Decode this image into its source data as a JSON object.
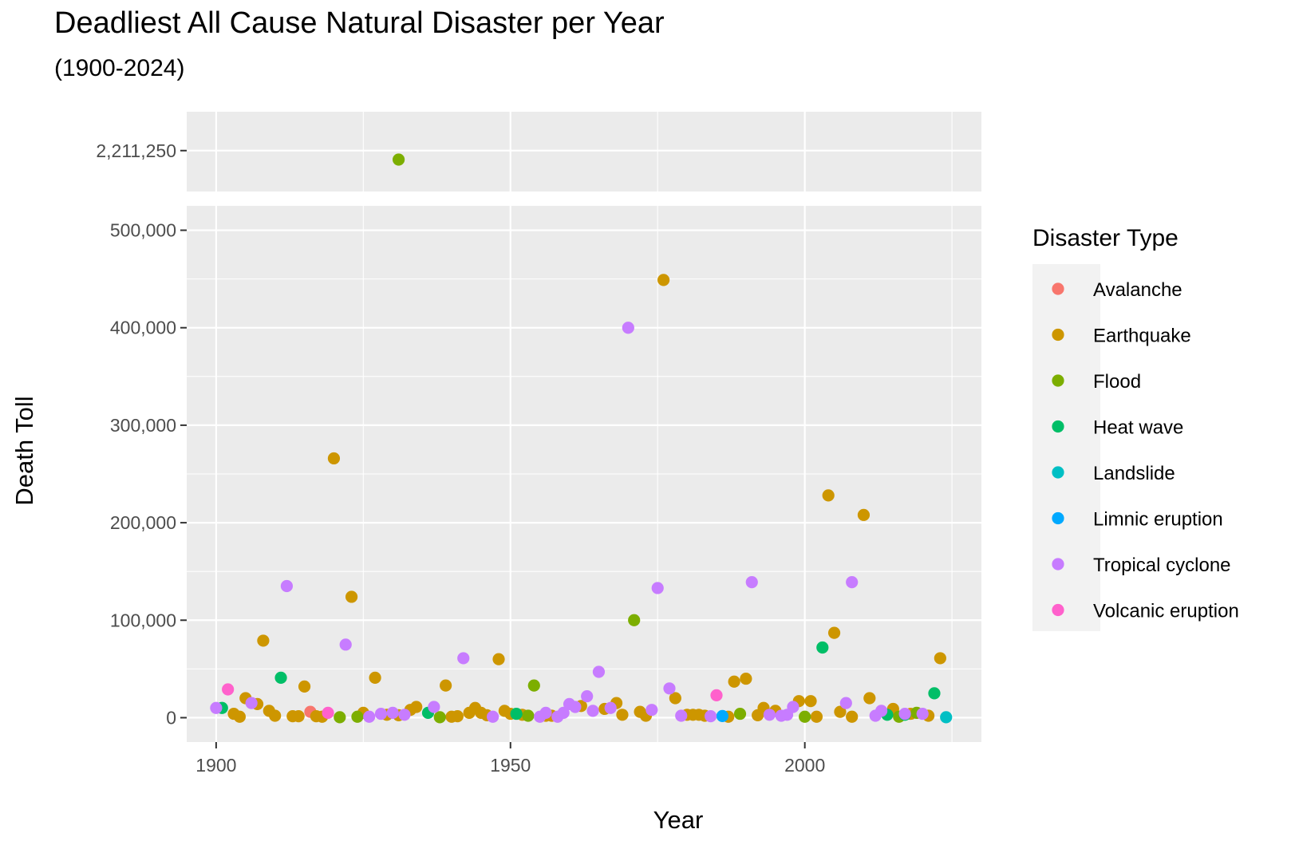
{
  "chart_data": {
    "type": "scatter",
    "title": "Deadliest All Cause Natural Disaster per Year",
    "subtitle": "(1900-2024)",
    "xlabel": "Year",
    "ylabel": "Death Toll",
    "xlim": [
      1895,
      2030
    ],
    "x_ticks": [
      1900,
      1950,
      2000
    ],
    "y_break": {
      "upper_panel": {
        "ylim": [
          2160000,
          2260000
        ],
        "ticks": [
          2211250
        ],
        "tick_labels": [
          "2,211,250"
        ]
      },
      "lower_panel": {
        "ylim": [
          -25000,
          525000
        ],
        "ticks": [
          0,
          100000,
          200000,
          300000,
          400000,
          500000
        ],
        "tick_labels": [
          "0",
          "100,000",
          "200,000",
          "300,000",
          "400,000",
          "500,000"
        ]
      }
    },
    "grid": true,
    "legend": {
      "title": "Disaster Type",
      "position": "right",
      "entries": [
        "Avalanche",
        "Earthquake",
        "Flood",
        "Heat wave",
        "Landslide",
        "Limnic eruption",
        "Tropical cyclone",
        "Volcanic eruption"
      ]
    },
    "colors": {
      "Avalanche": "#F8766D",
      "Earthquake": "#CD9600",
      "Flood": "#7CAE00",
      "Heat wave": "#00BE67",
      "Landslide": "#00BFC4",
      "Limnic eruption": "#00A9FF",
      "Tropical cyclone": "#C77CFF",
      "Volcanic eruption": "#FF61CC"
    },
    "series": [
      {
        "name": "Avalanche",
        "points": [
          [
            1916,
            6000
          ]
        ]
      },
      {
        "name": "Earthquake",
        "points": [
          [
            1903,
            4000
          ],
          [
            1904,
            1000
          ],
          [
            1905,
            20000
          ],
          [
            1907,
            14000
          ],
          [
            1908,
            79000
          ],
          [
            1909,
            7000
          ],
          [
            1910,
            2000
          ],
          [
            1913,
            1500
          ],
          [
            1914,
            1500
          ],
          [
            1915,
            32000
          ],
          [
            1917,
            1500
          ],
          [
            1918,
            1000
          ],
          [
            1920,
            266000
          ],
          [
            1923,
            124000
          ],
          [
            1925,
            5000
          ],
          [
            1927,
            41000
          ],
          [
            1929,
            3000
          ],
          [
            1931,
            2500
          ],
          [
            1933,
            8000
          ],
          [
            1934,
            11000
          ],
          [
            1939,
            33000
          ],
          [
            1940,
            1000
          ],
          [
            1941,
            1500
          ],
          [
            1943,
            5000
          ],
          [
            1944,
            10000
          ],
          [
            1945,
            5000
          ],
          [
            1946,
            2500
          ],
          [
            1948,
            60000
          ],
          [
            1949,
            7000
          ],
          [
            1950,
            4000
          ],
          [
            1952,
            3000
          ],
          [
            1956,
            2000
          ],
          [
            1957,
            2000
          ],
          [
            1962,
            12000
          ],
          [
            1966,
            9000
          ],
          [
            1968,
            15000
          ],
          [
            1969,
            3000
          ],
          [
            1972,
            6000
          ],
          [
            1973,
            2000
          ],
          [
            1976,
            449000
          ],
          [
            1978,
            20000
          ],
          [
            1980,
            3000
          ],
          [
            1981,
            3000
          ],
          [
            1982,
            3000
          ],
          [
            1983,
            2000
          ],
          [
            1987,
            1000
          ],
          [
            1988,
            37000
          ],
          [
            1990,
            40000
          ],
          [
            1992,
            2500
          ],
          [
            1993,
            10000
          ],
          [
            1995,
            7000
          ],
          [
            1999,
            17000
          ],
          [
            2001,
            17000
          ],
          [
            2002,
            1000
          ],
          [
            2004,
            228000
          ],
          [
            2005,
            87000
          ],
          [
            2006,
            6000
          ],
          [
            2008,
            1000
          ],
          [
            2010,
            208000
          ],
          [
            2011,
            20000
          ],
          [
            2015,
            9000
          ],
          [
            2018,
            4000
          ],
          [
            2021,
            2000
          ],
          [
            2023,
            61000
          ]
        ]
      },
      {
        "name": "Flood",
        "points": [
          [
            1921,
            500
          ],
          [
            1924,
            1000
          ],
          [
            1931,
            2200000
          ],
          [
            1938,
            500
          ],
          [
            1953,
            2000
          ],
          [
            1954,
            33000
          ],
          [
            1971,
            100000
          ],
          [
            1989,
            4000
          ],
          [
            2000,
            1000
          ],
          [
            2016,
            1000
          ],
          [
            2019,
            5000
          ]
        ]
      },
      {
        "name": "Heat wave",
        "points": [
          [
            1901,
            10000
          ],
          [
            1911,
            41000
          ],
          [
            1936,
            5000
          ],
          [
            1951,
            4000
          ],
          [
            2003,
            72000
          ],
          [
            2014,
            3000
          ],
          [
            2017,
            3000
          ],
          [
            2022,
            25000
          ]
        ]
      },
      {
        "name": "Landslide",
        "points": [
          [
            2024,
            500
          ]
        ]
      },
      {
        "name": "Limnic eruption",
        "points": [
          [
            1986,
            1700
          ]
        ]
      },
      {
        "name": "Tropical cyclone",
        "points": [
          [
            1900,
            10000
          ],
          [
            1906,
            15000
          ],
          [
            1912,
            135000
          ],
          [
            1922,
            75000
          ],
          [
            1926,
            1000
          ],
          [
            1928,
            4000
          ],
          [
            1930,
            5000
          ],
          [
            1932,
            3000
          ],
          [
            1937,
            11000
          ],
          [
            1942,
            61000
          ],
          [
            1947,
            1000
          ],
          [
            1955,
            1000
          ],
          [
            1956,
            5000
          ],
          [
            1958,
            1000
          ],
          [
            1959,
            5000
          ],
          [
            1960,
            14000
          ],
          [
            1961,
            11000
          ],
          [
            1963,
            22000
          ],
          [
            1964,
            7000
          ],
          [
            1965,
            47000
          ],
          [
            1967,
            10000
          ],
          [
            1970,
            400000
          ],
          [
            1974,
            8000
          ],
          [
            1975,
            133000
          ],
          [
            1977,
            30000
          ],
          [
            1979,
            2000
          ],
          [
            1984,
            1500
          ],
          [
            1991,
            139000
          ],
          [
            1994,
            3000
          ],
          [
            1996,
            2000
          ],
          [
            1997,
            3000
          ],
          [
            1998,
            11000
          ],
          [
            2007,
            15000
          ],
          [
            2008,
            139000
          ],
          [
            2012,
            2000
          ],
          [
            2013,
            7000
          ],
          [
            2017,
            4000
          ],
          [
            2020,
            4000
          ]
        ]
      },
      {
        "name": "Volcanic eruption",
        "points": [
          [
            1902,
            29000
          ],
          [
            1919,
            5000
          ],
          [
            1985,
            23000
          ]
        ]
      }
    ]
  }
}
